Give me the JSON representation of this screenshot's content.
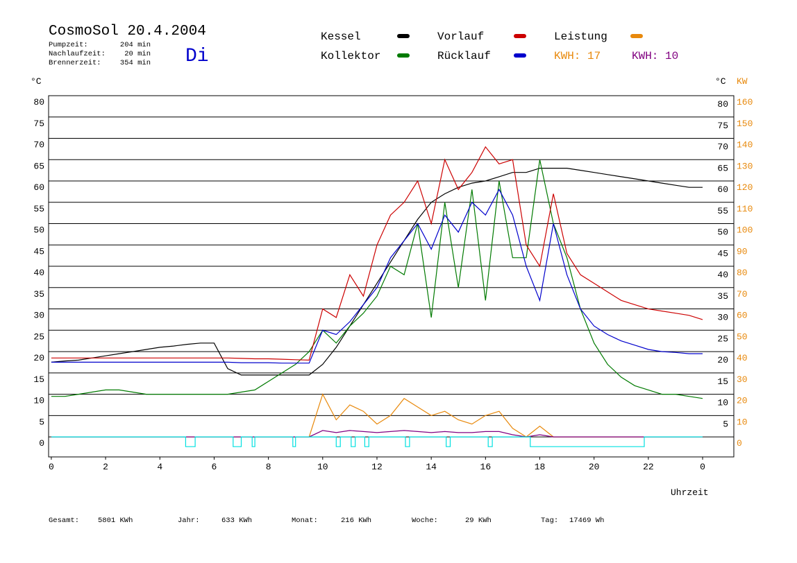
{
  "chart_data": {
    "type": "line",
    "title": "CosmoSol 20.4.2004",
    "day": "Di",
    "info": [
      {
        "label": "Pumpzeit:",
        "value": "204 min"
      },
      {
        "label": "Nachlaufzeit:",
        "value": "20 min"
      },
      {
        "label": "Brennerzeit:",
        "value": "354 min"
      }
    ],
    "y_label": "°C",
    "y2_label_left": "°C",
    "y2_label": "KW",
    "x_label": "Uhrzeit",
    "kwh_labels": [
      {
        "text": "KWH: 17",
        "color": "#e8890c"
      },
      {
        "text": "KWH: 10",
        "color": "#800080"
      }
    ],
    "summary": [
      {
        "label": "Gesamt:",
        "value": "5801 KWh"
      },
      {
        "label": "Jahr:",
        "value": "633 KWh"
      },
      {
        "label": "Monat:",
        "value": "216 KWh"
      },
      {
        "label": "Woche:",
        "value": "29 KWh"
      },
      {
        "label": "Tag:",
        "value": "17469 Wh"
      }
    ],
    "xlim": [
      -0.1,
      25.15
    ],
    "xticks": [
      0,
      2,
      4,
      6,
      8,
      10,
      12,
      14,
      16,
      18,
      20,
      22,
      {
        "value": 24,
        "label": "0"
      }
    ],
    "ylim": [
      -4.7,
      80
    ],
    "yticks": [
      0,
      5,
      10,
      15,
      20,
      25,
      30,
      35,
      40,
      45,
      50,
      55,
      60,
      65,
      70,
      75,
      80
    ],
    "y2lim": [
      -9.4,
      160
    ],
    "y2ticks": [
      0,
      10,
      20,
      30,
      40,
      50,
      60,
      70,
      80,
      90,
      100,
      110,
      120,
      130,
      140,
      150,
      160
    ],
    "grid": true,
    "x": [
      0,
      0.5,
      1,
      1.5,
      2,
      2.5,
      3,
      3.5,
      4,
      4.5,
      5,
      5.5,
      6,
      6.5,
      7,
      7.5,
      8,
      8.5,
      9,
      9.5,
      10,
      10.5,
      11,
      11.5,
      12,
      12.5,
      13,
      13.5,
      14,
      14.5,
      15,
      15.5,
      16,
      16.5,
      17,
      17.5,
      18,
      18.5,
      19,
      19.5,
      20,
      20.5,
      21,
      21.5,
      22,
      22.5,
      23,
      23.5,
      24
    ],
    "series": [
      {
        "name": "Kessel",
        "color": "#000000",
        "values": [
          17.5,
          17.8,
          18,
          18.5,
          19,
          19.5,
          20,
          20.5,
          21,
          21.3,
          21.7,
          22,
          22,
          16,
          14.5,
          14.5,
          14.5,
          14.5,
          14.5,
          14.5,
          17,
          21,
          26,
          31,
          36,
          41,
          46,
          51,
          55,
          57,
          58.5,
          59.5,
          60,
          61,
          62,
          62,
          63,
          63,
          63,
          62.5,
          62,
          61.5,
          61,
          60.5,
          60,
          59.5,
          59,
          58.5,
          58.5
        ]
      },
      {
        "name": "Kollektor",
        "color": "#007a00",
        "values": [
          9.5,
          9.5,
          10,
          10.5,
          11,
          11,
          10.5,
          10,
          10,
          10,
          10,
          10,
          10,
          10,
          10.5,
          11,
          13,
          15,
          17,
          20,
          25,
          22,
          26,
          29,
          33,
          40,
          38,
          50,
          28,
          55,
          35,
          58,
          32,
          60,
          42,
          42,
          65,
          50,
          42,
          30,
          22,
          17,
          14,
          12,
          11,
          10,
          10,
          9.5,
          9
        ]
      },
      {
        "name": "Vorlauf",
        "color": "#cc0000",
        "values": [
          18.5,
          18.5,
          18.5,
          18.5,
          18.5,
          18.5,
          18.5,
          18.5,
          18.5,
          18.5,
          18.5,
          18.5,
          18.5,
          18.5,
          18.4,
          18.3,
          18.3,
          18.2,
          18.1,
          18,
          30,
          28,
          38,
          33,
          45,
          52,
          55,
          60,
          50,
          65,
          58,
          62,
          68,
          64,
          65,
          45,
          40,
          57,
          43,
          38,
          36,
          34,
          32,
          31,
          30,
          29.5,
          29,
          28.5,
          27.5
        ]
      },
      {
        "name": "Rücklauf",
        "color": "#0000cc",
        "values": [
          17.5,
          17.5,
          17.5,
          17.5,
          17.5,
          17.5,
          17.5,
          17.5,
          17.5,
          17.5,
          17.5,
          17.5,
          17.5,
          17.5,
          17.4,
          17.4,
          17.4,
          17.3,
          17.3,
          17.3,
          25,
          24,
          27,
          31,
          35,
          42,
          46,
          50,
          44,
          52,
          48,
          55,
          52,
          58,
          52,
          40,
          32,
          50,
          38,
          30,
          26,
          24,
          22.5,
          21.5,
          20.5,
          20,
          19.8,
          19.5,
          19.5
        ]
      },
      {
        "name": "Leistung",
        "color": "#e8890c",
        "axis": "y2",
        "values": [
          0,
          0,
          0,
          0,
          0,
          0,
          0,
          0,
          0,
          0,
          0,
          0,
          0,
          0,
          0,
          0,
          0,
          0,
          0,
          0,
          20,
          8,
          15,
          12,
          6,
          10,
          18,
          14,
          10,
          12,
          8,
          6,
          10,
          12,
          4,
          0,
          5,
          0,
          0,
          0,
          0,
          0,
          0,
          0,
          0,
          0,
          0,
          0,
          0
        ]
      },
      {
        "color": "#800080",
        "axis": "y2",
        "values": [
          0,
          0,
          0,
          0,
          0,
          0,
          0,
          0,
          0,
          0,
          0,
          0,
          0,
          0,
          0,
          0,
          0,
          0,
          0,
          0,
          3,
          2,
          3,
          2.5,
          2,
          2.5,
          3,
          2.5,
          2,
          2.5,
          2,
          2,
          2.5,
          2.5,
          1,
          0,
          1,
          0,
          0,
          0,
          0,
          0,
          0,
          0,
          0,
          0,
          0,
          0,
          0
        ]
      },
      {
        "color": "#00e0e0",
        "x": [
          0,
          4.95,
          4.95,
          5.3,
          5.3,
          6.7,
          6.7,
          7,
          7,
          7.4,
          7.4,
          7.5,
          7.5,
          8.9,
          8.9,
          9,
          9,
          10.5,
          10.5,
          10.65,
          10.65,
          11.05,
          11.05,
          11.2,
          11.2,
          11.55,
          11.55,
          11.7,
          11.7,
          13.05,
          13.05,
          13.2,
          13.2,
          14.55,
          14.55,
          14.7,
          14.7,
          16.1,
          16.1,
          16.25,
          16.25,
          17.65,
          17.65,
          21.85,
          21.85,
          24
        ],
        "values": [
          0,
          0,
          -2.3,
          -2.3,
          0,
          0,
          -2.3,
          -2.3,
          0,
          0,
          -2.3,
          -2.3,
          0,
          0,
          -2.3,
          -2.3,
          0,
          0,
          -2.3,
          -2.3,
          0,
          0,
          -2.3,
          -2.3,
          0,
          0,
          -2.3,
          -2.3,
          0,
          0,
          -2.3,
          -2.3,
          0,
          0,
          -2.3,
          -2.3,
          0,
          0,
          -2.3,
          -2.3,
          0,
          0,
          -2.3,
          -2.3,
          0,
          0
        ]
      }
    ]
  }
}
